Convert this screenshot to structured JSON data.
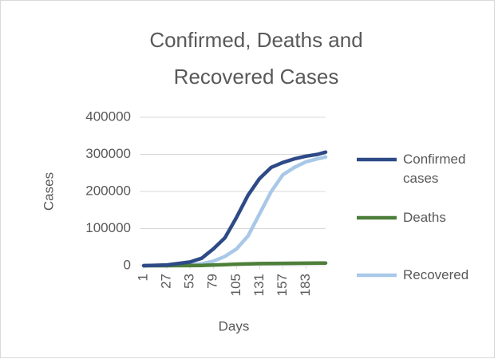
{
  "chart_data": {
    "type": "line",
    "title": "Confirmed, Deaths and Recovered Cases",
    "x_label": "Days",
    "y_label": "Cases",
    "x": [
      1,
      27,
      53,
      66,
      79,
      92,
      105,
      118,
      131,
      144,
      157,
      170,
      183,
      196,
      205
    ],
    "series": [
      {
        "name": "Confirmed cases",
        "color": "#2e4a87",
        "values": [
          0,
          2000,
          10000,
          20000,
          45000,
          75000,
          130000,
          190000,
          235000,
          265000,
          278000,
          288000,
          295000,
          300000,
          306000
        ]
      },
      {
        "name": "Deaths",
        "color": "#4e7f3a",
        "values": [
          0,
          0,
          200,
          600,
          1500,
          2800,
          4000,
          5000,
          5600,
          6000,
          6300,
          6500,
          6700,
          6900,
          7000
        ]
      },
      {
        "name": "Recovered",
        "color": "#a9c8e8",
        "values": [
          0,
          0,
          2000,
          5000,
          12000,
          25000,
          45000,
          80000,
          140000,
          200000,
          245000,
          265000,
          280000,
          288000,
          293000
        ]
      }
    ],
    "xlim": [
      0,
      205
    ],
    "xticks": [
      1,
      27,
      53,
      79,
      105,
      131,
      157,
      183
    ],
    "ylim": [
      0,
      400000
    ],
    "yticks": [
      0,
      100000,
      200000,
      300000,
      400000
    ],
    "grid": true,
    "legend": "right"
  }
}
